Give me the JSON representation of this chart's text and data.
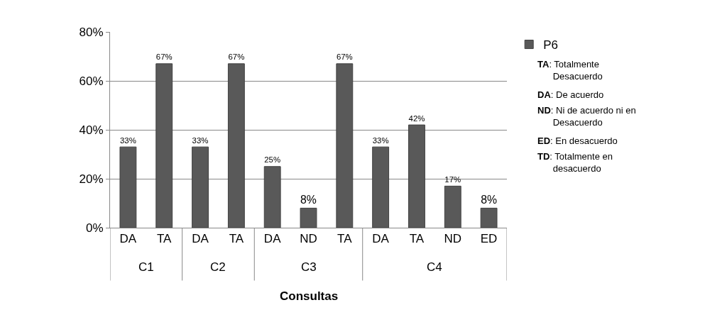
{
  "chart_data": {
    "type": "bar",
    "xlabel": "Consultas",
    "categories": [
      "DA",
      "TA",
      "DA",
      "TA",
      "DA",
      "ND",
      "TA",
      "DA",
      "TA",
      "ND",
      "ED"
    ],
    "series": [
      {
        "name": "P6",
        "color": "#595959",
        "values": [
          33,
          67,
          33,
          67,
          25,
          8,
          67,
          33,
          42,
          17,
          8
        ],
        "value_labels": [
          "33%",
          "67%",
          "33%",
          "67%",
          "25%",
          "8%",
          "67%",
          "33%",
          "42%",
          "17%",
          "8%"
        ]
      }
    ],
    "ylim": [
      0,
      80
    ],
    "yticks": [
      {
        "value": 0,
        "label": "0%"
      },
      {
        "value": 20,
        "label": "20%"
      },
      {
        "value": 40,
        "label": "40%"
      },
      {
        "value": 60,
        "label": "60%"
      },
      {
        "value": 80,
        "label": "80%"
      }
    ],
    "grid": "y",
    "legend": "top right",
    "annotations": [
      "C1",
      "C2",
      "C3",
      "C4",
      "TA: Totalmente Desacuerdo",
      "DA: De acuerdo",
      "ND: Ni de acuerdo ni en Desacuerdo",
      "ED: En desacuerdo",
      "TD: Totalmente en desacuerdo"
    ]
  }
}
